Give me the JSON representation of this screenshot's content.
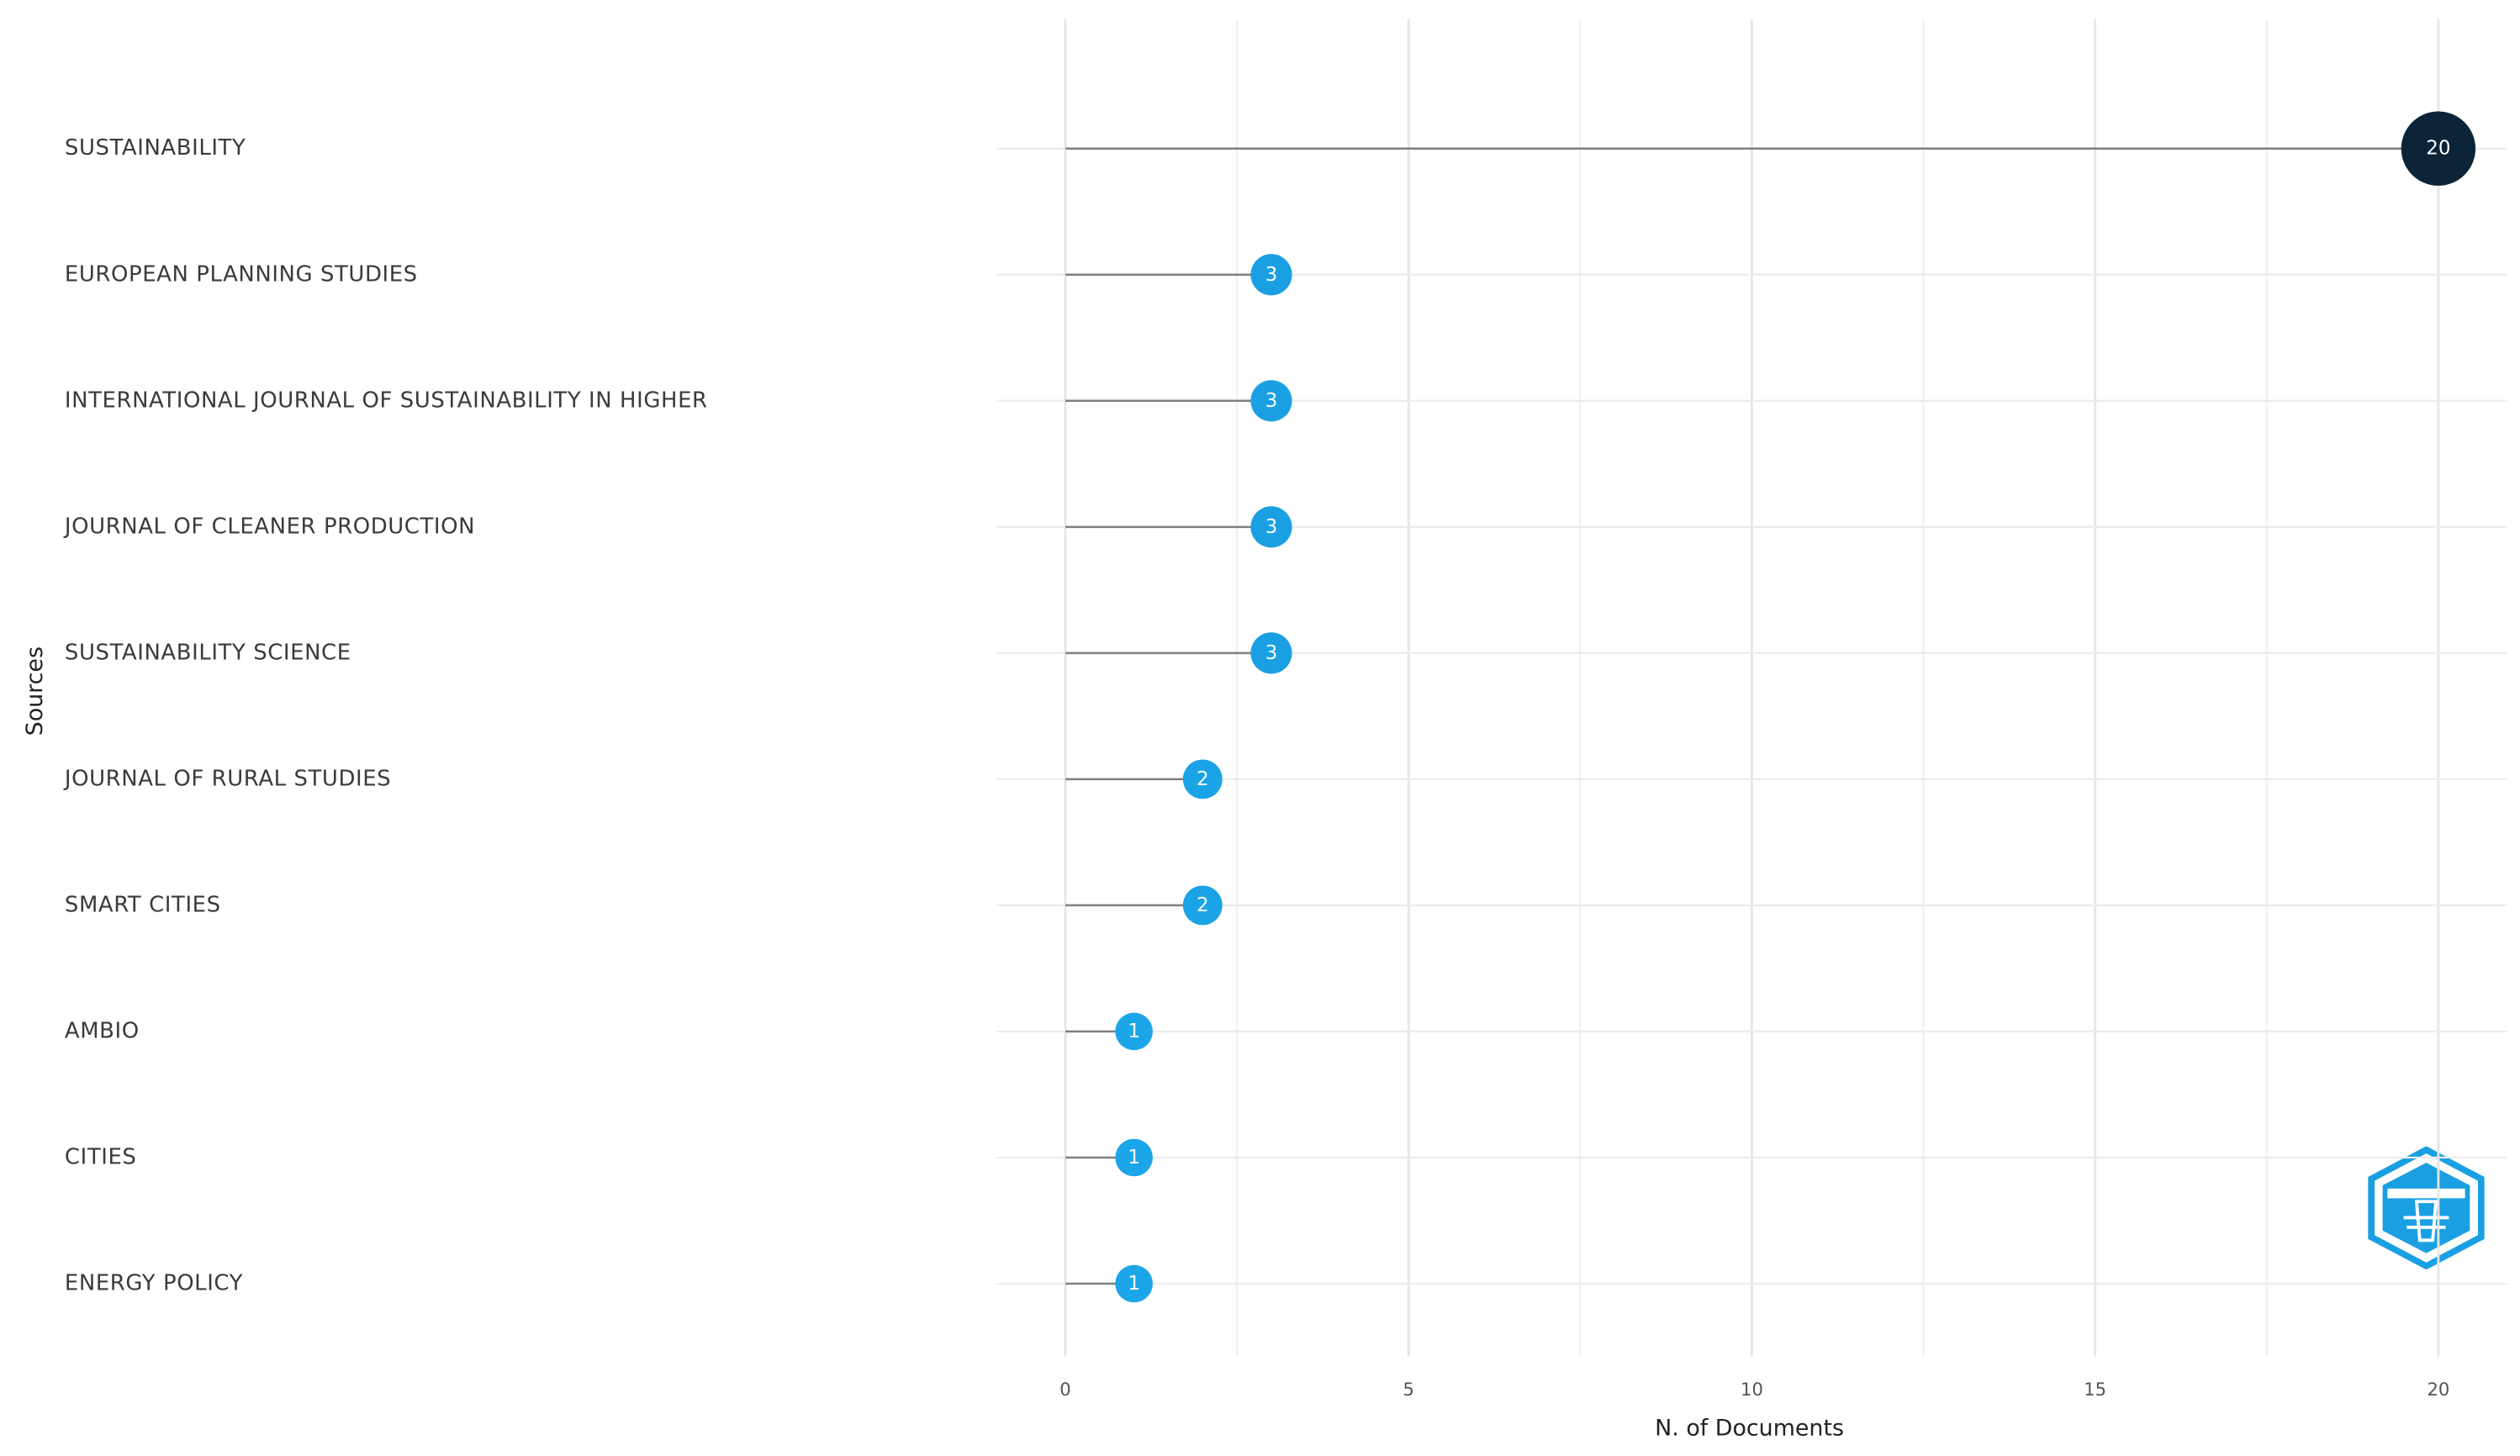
{
  "chart_data": {
    "type": "lollipop",
    "x_label": "N. of Documents",
    "y_label": "Sources",
    "categories": [
      "SUSTAINABILITY",
      "EUROPEAN PLANNING STUDIES",
      "INTERNATIONAL JOURNAL OF SUSTAINABILITY IN HIGHER",
      "JOURNAL OF CLEANER PRODUCTION",
      "SUSTAINABILITY SCIENCE",
      "JOURNAL OF RURAL STUDIES",
      "SMART CITIES",
      "AMBIO",
      "CITIES",
      "ENERGY POLICY"
    ],
    "values": [
      20,
      3,
      3,
      3,
      3,
      2,
      2,
      1,
      1,
      1
    ],
    "colors": [
      "#0c2437",
      "#1aa0e2",
      "#1aa0e2",
      "#1aa0e2",
      "#1aa0e2",
      "#1aa3e6",
      "#1aa3e6",
      "#1ba6ea",
      "#1ba6ea",
      "#1ba6ea"
    ],
    "stem_color": "#7f7f7f",
    "xlim": [
      -1,
      21
    ],
    "xticks": [
      0,
      5,
      10,
      15,
      20
    ],
    "minor_xticks": [
      2.5,
      7.5,
      12.5,
      17.5
    ],
    "grid": true
  }
}
